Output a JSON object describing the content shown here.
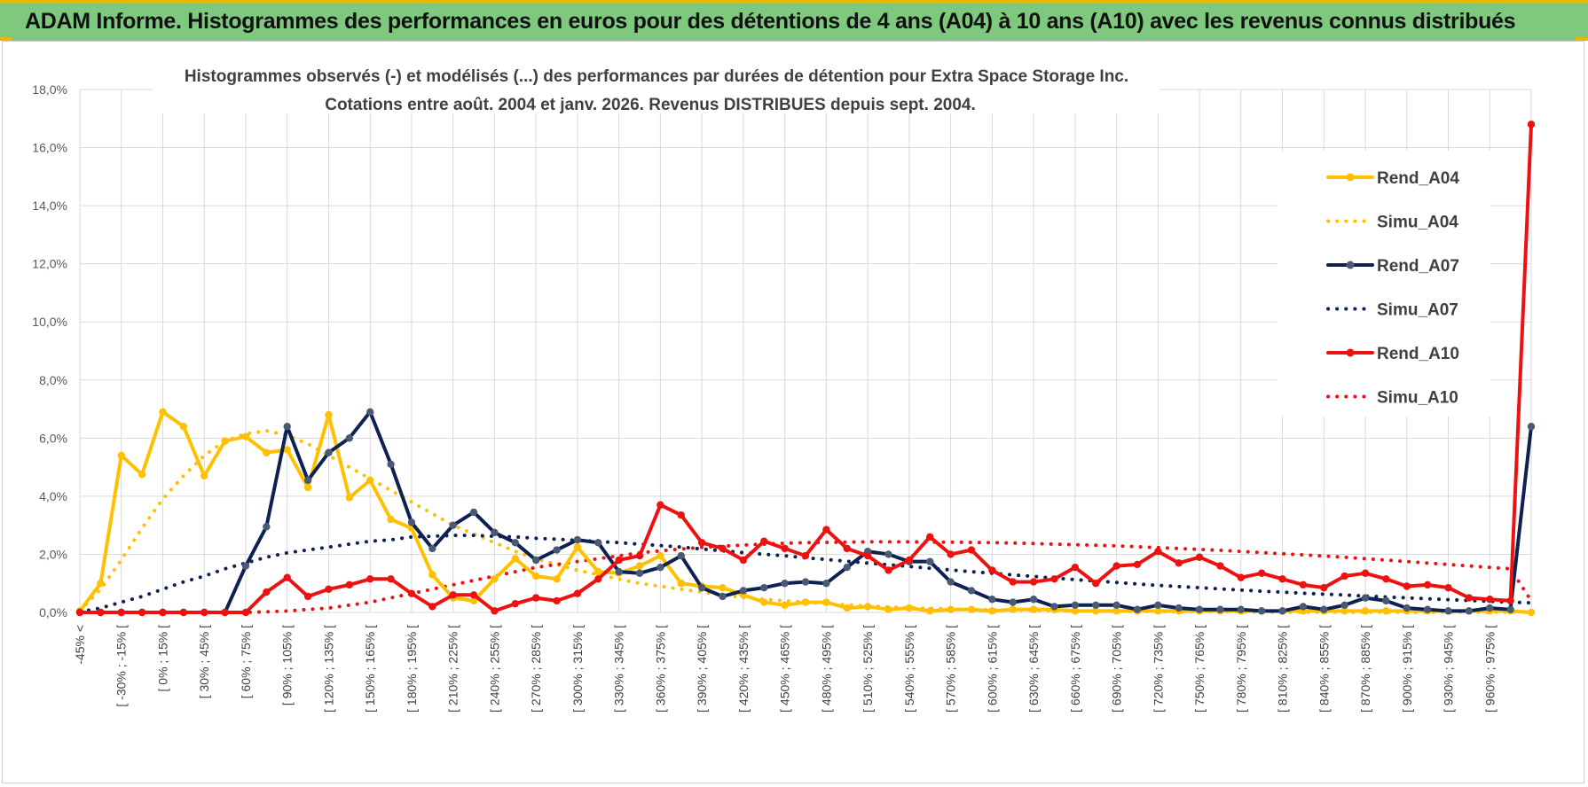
{
  "banner": {
    "title": "ADAM Informe. Histogrammes des performances en euros pour des détentions de 4 ans (A04) à 10 ans (A10) avec les revenus connus distribués"
  },
  "colors": {
    "banner_bg": "#7fc97f",
    "banner_accent": "#e6b800",
    "a04": "#ffc000",
    "a07": "#0d2252",
    "a07_marker": "#4a5a74",
    "a10": "#ee1111",
    "grid": "#d9d9d9"
  },
  "chart_data": {
    "type": "line",
    "title_line1": "Histogrammes observés (-) et modélisés (...) des performances par durées de détention pour Extra Space Storage Inc.",
    "title_line2": "Cotations entre août. 2004 et janv. 2026. Revenus DISTRIBUES depuis sept. 2004.",
    "y_ticks": [
      "0,0%",
      "2,0%",
      "4,0%",
      "6,0%",
      "8,0%",
      "10,0%",
      "12,0%",
      "14,0%",
      "16,0%",
      "18,0%"
    ],
    "ylim": [
      0,
      18
    ],
    "y_unit": "%",
    "grid": true,
    "legend_position": "right",
    "x_tick_labels": [
      "-45% <",
      "[ -30% ; -15% [",
      "[ 0% ; 15% [",
      "[ 30% ; 45% [",
      "[ 60% ; 75% [",
      "[ 90% ; 105% [",
      "[ 120% ; 135% [",
      "[ 150% ; 165% [",
      "[ 180% ; 195% [",
      "[ 210% ; 225% [",
      "[ 240% ; 255% [",
      "[ 270% ; 285% [",
      "[ 300% ; 315% [",
      "[ 330% ; 345% [",
      "[ 360% ; 375% [",
      "[ 390% ; 405% [",
      "[ 420% ; 435% [",
      "[ 450% ; 465% [",
      "[ 480% ; 495% [",
      "[ 510% ; 525% [",
      "[ 540% ; 555% [",
      "[ 570% ; 585% [",
      "[ 600% ; 615% [",
      "[ 630% ; 645% [",
      "[ 660% ; 675% [",
      "[ 690% ; 705% [",
      "[ 720% ; 735% [",
      "[ 750% ; 765% [",
      "[ 780% ; 795% [",
      "[ 810% ; 825% [",
      "[ 840% ; 855% [",
      "[ 870% ; 885% [",
      "[ 900% ; 915% [",
      "[ 930% ; 945% [",
      "[ 960% ; 975% ["
    ],
    "series": [
      {
        "name": "Rend_A04",
        "style": "solid",
        "color": "#ffc000",
        "values": [
          0.05,
          1.0,
          5.4,
          4.75,
          6.9,
          6.4,
          4.7,
          5.9,
          6.05,
          5.5,
          5.6,
          4.3,
          6.8,
          3.95,
          4.55,
          3.2,
          2.9,
          1.3,
          0.5,
          0.4,
          1.15,
          1.85,
          1.25,
          1.15,
          2.25,
          1.4,
          1.35,
          1.6,
          1.95,
          1.0,
          0.9,
          0.85,
          0.6,
          0.35,
          0.25,
          0.35,
          0.35,
          0.15,
          0.2,
          0.1,
          0.15,
          0.05,
          0.1,
          0.1,
          0.05,
          0.1,
          0.1,
          0.1,
          0.05,
          0.05,
          0.05,
          0.05,
          0.05,
          0.05,
          0.05,
          0.05,
          0.05,
          0.05,
          0.05,
          0.05,
          0.05,
          0.05,
          0.05,
          0.05,
          0.05,
          0.05,
          0.05,
          0.05,
          0.05,
          0.05,
          0.0
        ]
      },
      {
        "name": "Simu_A04",
        "style": "dotted",
        "color": "#ffc000",
        "values": [
          0.05,
          0.8,
          1.8,
          2.9,
          3.9,
          4.7,
          5.4,
          5.9,
          6.15,
          6.25,
          6.1,
          5.8,
          5.4,
          5.0,
          4.6,
          4.2,
          3.8,
          3.4,
          3.0,
          2.7,
          2.4,
          2.1,
          1.85,
          1.65,
          1.45,
          1.3,
          1.15,
          1.0,
          0.9,
          0.8,
          0.7,
          0.6,
          0.52,
          0.45,
          0.4,
          0.35,
          0.3,
          0.26,
          0.22,
          0.19,
          0.16,
          0.14,
          0.12,
          0.1,
          0.09,
          0.08,
          0.07,
          0.06,
          0.05,
          0.04,
          0.04,
          0.03,
          0.03,
          0.02,
          0.02,
          0.02,
          0.02,
          0.01,
          0.01,
          0.01,
          0.01,
          0.01,
          0.01,
          0.01,
          0.01,
          0.01,
          0.01,
          0.01,
          0.01,
          0.01,
          0.01
        ]
      },
      {
        "name": "Rend_A07",
        "style": "solid",
        "color": "#0d2252",
        "values": [
          0,
          0,
          0,
          0,
          0,
          0,
          0,
          0,
          1.6,
          2.95,
          6.4,
          4.55,
          5.5,
          6.0,
          6.9,
          5.1,
          3.1,
          2.2,
          3.0,
          3.45,
          2.75,
          2.4,
          1.8,
          2.15,
          2.5,
          2.4,
          1.4,
          1.35,
          1.55,
          1.95,
          0.85,
          0.55,
          0.75,
          0.85,
          1.0,
          1.05,
          1.0,
          1.55,
          2.1,
          2.0,
          1.75,
          1.75,
          1.05,
          0.75,
          0.45,
          0.35,
          0.45,
          0.2,
          0.25,
          0.25,
          0.25,
          0.1,
          0.25,
          0.15,
          0.1,
          0.1,
          0.1,
          0.05,
          0.05,
          0.2,
          0.1,
          0.25,
          0.5,
          0.4,
          0.15,
          0.1,
          0.05,
          0.05,
          0.15,
          0.1,
          6.4
        ]
      },
      {
        "name": "Simu_A07",
        "style": "dotted",
        "color": "#0d2252",
        "values": [
          0.02,
          0.15,
          0.35,
          0.55,
          0.8,
          1.05,
          1.25,
          1.5,
          1.7,
          1.9,
          2.05,
          2.15,
          2.25,
          2.35,
          2.45,
          2.5,
          2.6,
          2.62,
          2.65,
          2.65,
          2.62,
          2.6,
          2.55,
          2.52,
          2.48,
          2.44,
          2.4,
          2.35,
          2.3,
          2.25,
          2.18,
          2.12,
          2.06,
          2.0,
          1.95,
          1.88,
          1.82,
          1.76,
          1.7,
          1.64,
          1.58,
          1.52,
          1.46,
          1.4,
          1.35,
          1.29,
          1.24,
          1.18,
          1.13,
          1.08,
          1.03,
          0.98,
          0.93,
          0.89,
          0.85,
          0.81,
          0.77,
          0.73,
          0.7,
          0.66,
          0.63,
          0.6,
          0.56,
          0.53,
          0.5,
          0.47,
          0.44,
          0.41,
          0.38,
          0.35,
          0.33
        ]
      },
      {
        "name": "Rend_A10",
        "style": "solid",
        "color": "#ee1111",
        "values": [
          0,
          0,
          0,
          0,
          0,
          0,
          0,
          0,
          0,
          0.7,
          1.2,
          0.55,
          0.8,
          0.95,
          1.15,
          1.15,
          0.65,
          0.2,
          0.6,
          0.6,
          0.05,
          0.3,
          0.5,
          0.4,
          0.65,
          1.15,
          1.8,
          1.95,
          3.7,
          3.35,
          2.4,
          2.2,
          1.8,
          2.45,
          2.2,
          1.95,
          2.85,
          2.2,
          1.95,
          1.45,
          1.8,
          2.6,
          2.0,
          2.15,
          1.45,
          1.05,
          1.05,
          1.15,
          1.55,
          1.0,
          1.6,
          1.65,
          2.1,
          1.7,
          1.9,
          1.6,
          1.2,
          1.35,
          1.15,
          0.95,
          0.85,
          1.25,
          1.35,
          1.15,
          0.9,
          0.95,
          0.85,
          0.5,
          0.45,
          0.4,
          16.8
        ]
      },
      {
        "name": "Simu_A10",
        "style": "dotted",
        "color": "#ee1111",
        "values": [
          0,
          0,
          0,
          0,
          0,
          0,
          0,
          0,
          0,
          0.02,
          0.05,
          0.1,
          0.15,
          0.25,
          0.35,
          0.5,
          0.65,
          0.8,
          0.95,
          1.1,
          1.25,
          1.4,
          1.55,
          1.65,
          1.75,
          1.85,
          1.95,
          2.05,
          2.12,
          2.18,
          2.24,
          2.28,
          2.32,
          2.35,
          2.38,
          2.4,
          2.41,
          2.42,
          2.43,
          2.43,
          2.43,
          2.42,
          2.42,
          2.41,
          2.4,
          2.39,
          2.37,
          2.35,
          2.33,
          2.31,
          2.29,
          2.26,
          2.23,
          2.2,
          2.17,
          2.14,
          2.1,
          2.06,
          2.02,
          1.98,
          1.94,
          1.9,
          1.85,
          1.8,
          1.75,
          1.7,
          1.65,
          1.6,
          1.55,
          1.5,
          0.4
        ]
      }
    ]
  }
}
